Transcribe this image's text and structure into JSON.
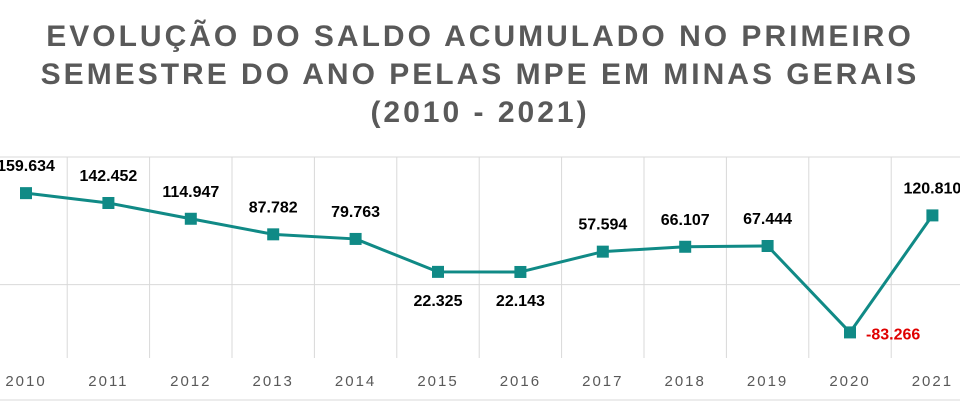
{
  "chart_data": {
    "type": "line",
    "title_lines": [
      "EVOLUÇÃO DO SALDO ACUMULADO NO PRIMEIRO",
      "SEMESTRE DO ANO PELAS MPE EM MINAS GERAIS",
      "(2010 - 2021)"
    ],
    "categories": [
      "2010",
      "2011",
      "2012",
      "2013",
      "2014",
      "2015",
      "2016",
      "2017",
      "2018",
      "2019",
      "2020",
      "2021"
    ],
    "series": [
      {
        "values": [
          159634,
          142452,
          114947,
          87782,
          79763,
          22325,
          22143,
          57594,
          66107,
          67444,
          -83266,
          120810
        ],
        "labels": [
          "159.634",
          "142.452",
          "114.947",
          "87.782",
          "79.763",
          "22.325",
          "22.143",
          "57.594",
          "66.107",
          "67.444",
          "-83.266",
          "120.810"
        ],
        "color": "#108a86"
      }
    ],
    "negative_label_color": "#e00000",
    "ylim": [
      -100000,
      200000
    ],
    "grid": "vertical",
    "legend": "none"
  }
}
